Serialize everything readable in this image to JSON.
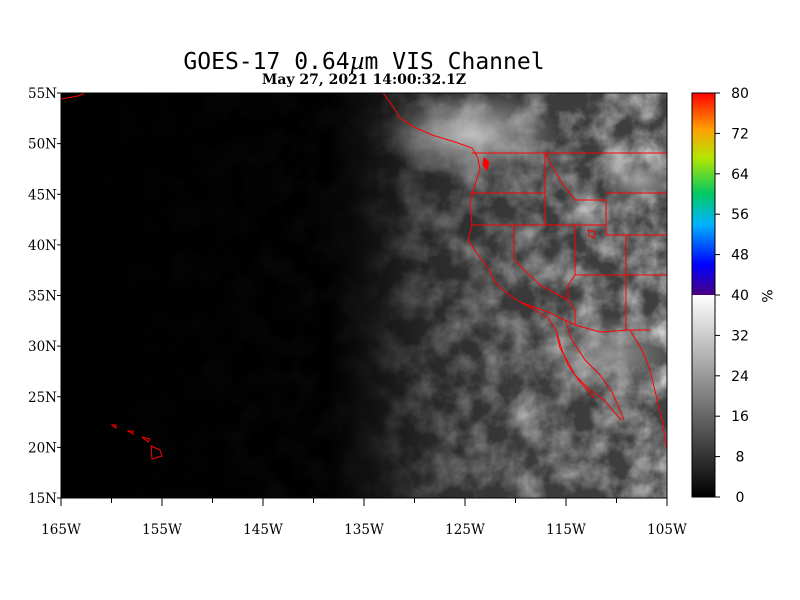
{
  "title": {
    "prefix": "GOES-17  0.64",
    "mu": "µ",
    "suffix": "m VIS Channel"
  },
  "subtitle": "May 27,  2021 14:00:32.1Z",
  "map": {
    "lon_range": [
      -165,
      -105
    ],
    "lat_range": [
      15,
      55
    ],
    "boundary_color": "#ff0000",
    "x_ticks": [
      {
        "lon": -165,
        "label": "165W"
      },
      {
        "lon": -155,
        "label": "155W"
      },
      {
        "lon": -145,
        "label": "145W"
      },
      {
        "lon": -135,
        "label": "135W"
      },
      {
        "lon": -125,
        "label": "125W"
      },
      {
        "lon": -115,
        "label": "115W"
      },
      {
        "lon": -105,
        "label": "105W"
      }
    ],
    "y_ticks": [
      {
        "lat": 55,
        "label": "55N"
      },
      {
        "lat": 50,
        "label": "50N"
      },
      {
        "lat": 45,
        "label": "45N"
      },
      {
        "lat": 40,
        "label": "40N"
      },
      {
        "lat": 35,
        "label": "35N"
      },
      {
        "lat": 30,
        "label": "30N"
      },
      {
        "lat": 25,
        "label": "25N"
      },
      {
        "lat": 20,
        "label": "20N"
      },
      {
        "lat": 15,
        "label": "15N"
      }
    ]
  },
  "colorbar": {
    "unit": "%",
    "range": [
      0,
      80
    ],
    "ticks": [
      {
        "value": 80,
        "label": "80"
      },
      {
        "value": 72,
        "label": "72"
      },
      {
        "value": 64,
        "label": "64"
      },
      {
        "value": 56,
        "label": "56"
      },
      {
        "value": 48,
        "label": "48"
      },
      {
        "value": 40,
        "label": "40"
      },
      {
        "value": 32,
        "label": "32"
      },
      {
        "value": 24,
        "label": "24"
      },
      {
        "value": 16,
        "label": "16"
      },
      {
        "value": 8,
        "label": "8"
      },
      {
        "value": 0,
        "label": "0"
      }
    ]
  }
}
